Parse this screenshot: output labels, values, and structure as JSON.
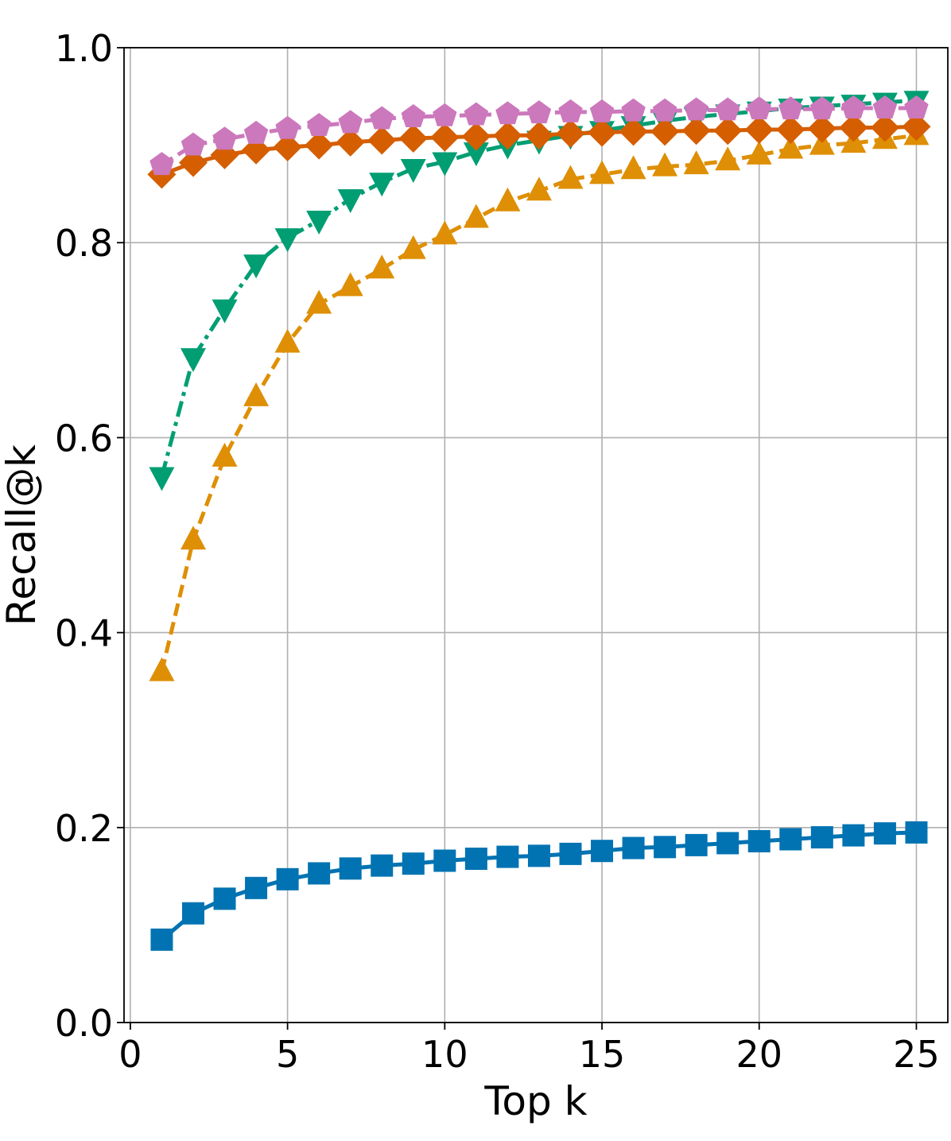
{
  "chart_data": {
    "type": "line",
    "title": "",
    "xlabel": "Top k",
    "ylabel": "Recall@k",
    "xlim": [
      -0.2,
      26.0
    ],
    "ylim": [
      0.0,
      1.0
    ],
    "x_ticks": [
      0,
      5,
      10,
      15,
      20,
      25
    ],
    "y_ticks": [
      0.0,
      0.2,
      0.4,
      0.6,
      0.8,
      1.0
    ],
    "grid": true,
    "legend": "none",
    "x": [
      1,
      2,
      3,
      4,
      5,
      6,
      7,
      8,
      9,
      10,
      11,
      12,
      13,
      14,
      15,
      16,
      17,
      18,
      19,
      20,
      21,
      22,
      23,
      24,
      25
    ],
    "series": [
      {
        "name": "blue-square",
        "color": "#0173b2",
        "marker": "square",
        "linestyle": "solid",
        "values": [
          0.085,
          0.112,
          0.127,
          0.138,
          0.147,
          0.153,
          0.158,
          0.161,
          0.163,
          0.166,
          0.168,
          0.17,
          0.171,
          0.173,
          0.176,
          0.179,
          0.18,
          0.182,
          0.184,
          0.186,
          0.188,
          0.19,
          0.192,
          0.194,
          0.195
        ]
      },
      {
        "name": "orange-triangle-up",
        "color": "#de8f05",
        "marker": "triangle-up",
        "linestyle": "dashed",
        "values": [
          0.36,
          0.495,
          0.58,
          0.642,
          0.697,
          0.737,
          0.755,
          0.773,
          0.793,
          0.808,
          0.825,
          0.842,
          0.853,
          0.865,
          0.87,
          0.875,
          0.878,
          0.88,
          0.884,
          0.89,
          0.896,
          0.9,
          0.902,
          0.906,
          0.91
        ]
      },
      {
        "name": "green-triangle-down",
        "color": "#029e73",
        "marker": "triangle-down",
        "linestyle": "dashdot",
        "values": [
          0.56,
          0.682,
          0.732,
          0.778,
          0.805,
          0.823,
          0.845,
          0.862,
          0.876,
          0.883,
          0.893,
          0.9,
          0.905,
          0.91,
          0.915,
          0.92,
          0.925,
          0.929,
          0.932,
          0.935,
          0.938,
          0.94,
          0.942,
          0.944,
          0.946
        ]
      },
      {
        "name": "vermillion-diamond",
        "color": "#d55e00",
        "marker": "diamond",
        "linestyle": "solid",
        "values": [
          0.87,
          0.882,
          0.89,
          0.895,
          0.898,
          0.9,
          0.903,
          0.905,
          0.907,
          0.908,
          0.909,
          0.91,
          0.91,
          0.912,
          0.913,
          0.914,
          0.914,
          0.915,
          0.915,
          0.916,
          0.916,
          0.917,
          0.918,
          0.918,
          0.919
        ]
      },
      {
        "name": "pink-pentagon",
        "color": "#cc78bc",
        "marker": "pentagon",
        "linestyle": "dashed",
        "values": [
          0.88,
          0.9,
          0.906,
          0.912,
          0.917,
          0.92,
          0.923,
          0.927,
          0.929,
          0.93,
          0.931,
          0.932,
          0.933,
          0.934,
          0.934,
          0.935,
          0.935,
          0.936,
          0.936,
          0.937,
          0.937,
          0.937,
          0.938,
          0.938,
          0.938
        ]
      }
    ]
  }
}
